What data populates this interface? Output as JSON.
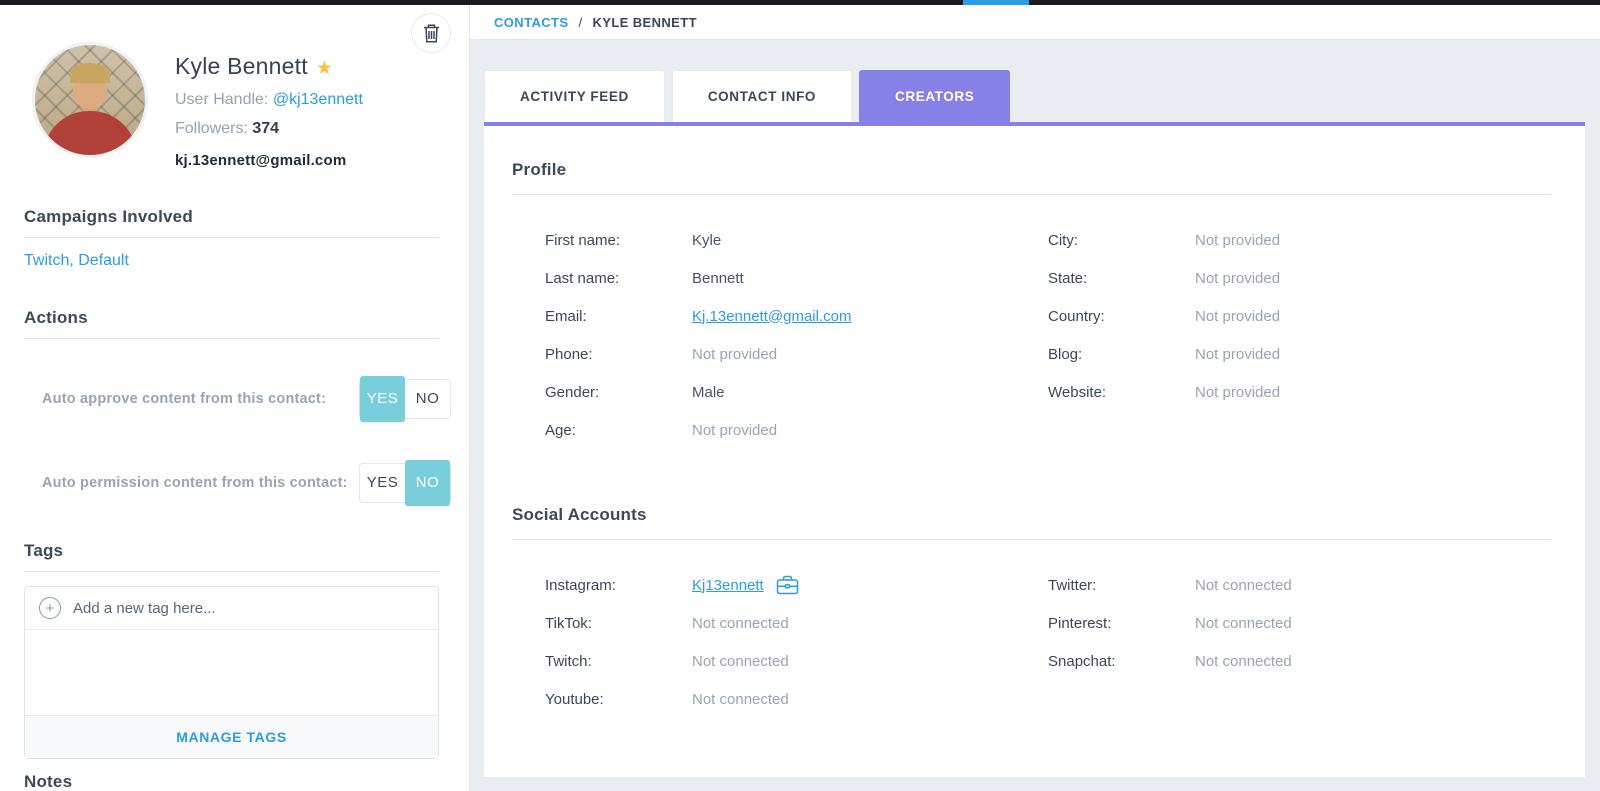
{
  "colors": {
    "accent_blue": "#2a9ce5",
    "accent_purple": "#8681e7",
    "accent_teal": "#79cedb",
    "star_gold": "#f6c544",
    "dark_text": "#3d4657",
    "muted_text": "#9aa3b1",
    "topbar_black": "#1a1b1f",
    "topbar_blue_segment": "#2e9be5"
  },
  "breadcrumb": {
    "root": "CONTACTS",
    "separator": "/",
    "current": "KYLE BENNETT"
  },
  "sidebar": {
    "delete_icon": "trash-icon",
    "profile_card": {
      "name": "Kyle Bennett",
      "star_icon": "star-icon",
      "star_glyph": "★",
      "user_handle_label": "User Handle:",
      "user_handle": "@kj13ennett",
      "followers_label": "Followers:",
      "followers_count": "374",
      "email": "kj.13ennett@gmail.com"
    },
    "campaigns": {
      "title": "Campaigns Involved",
      "items": [
        "Twitch",
        "Default"
      ],
      "separator": ", "
    },
    "actions": {
      "title": "Actions",
      "rows": [
        {
          "label": "Auto approve content from this contact:",
          "yes_label": "YES",
          "no_label": "NO",
          "selected": "yes"
        },
        {
          "label": "Auto permission content from this contact:",
          "yes_label": "YES",
          "no_label": "NO",
          "selected": "no"
        }
      ]
    },
    "tags": {
      "title": "Tags",
      "add_icon": "plus-icon",
      "plus_glyph": "+",
      "add_placeholder": "Add a new tag here...",
      "manage_button": "MANAGE TAGS"
    },
    "notes": {
      "title": "Notes"
    }
  },
  "main": {
    "tabs": [
      {
        "label": "ACTIVITY FEED",
        "active": false
      },
      {
        "label": "CONTACT INFO",
        "active": false
      },
      {
        "label": "CREATORS",
        "active": true
      }
    ],
    "profile_section": {
      "title": "Profile",
      "left": [
        {
          "label": "First name:",
          "value": "Kyle",
          "type": "text"
        },
        {
          "label": "Last name:",
          "value": "Bennett",
          "type": "text"
        },
        {
          "label": "Email:",
          "value": "Kj.13ennett@gmail.com",
          "type": "link"
        },
        {
          "label": "Phone:",
          "value": "Not provided",
          "type": "muted"
        },
        {
          "label": "Gender:",
          "value": "Male",
          "type": "text"
        },
        {
          "label": "Age:",
          "value": "Not provided",
          "type": "muted"
        }
      ],
      "right": [
        {
          "label": "City:",
          "value": "Not provided",
          "type": "muted"
        },
        {
          "label": "State:",
          "value": "Not provided",
          "type": "muted"
        },
        {
          "label": "Country:",
          "value": "Not provided",
          "type": "muted"
        },
        {
          "label": "Blog:",
          "value": "Not provided",
          "type": "muted"
        },
        {
          "label": "Website:",
          "value": "Not provided",
          "type": "muted"
        }
      ]
    },
    "social_section": {
      "title": "Social Accounts",
      "left": [
        {
          "label": "Instagram:",
          "value": "Kj13ennett",
          "type": "link",
          "icon": "briefcase-icon"
        },
        {
          "label": "TikTok:",
          "value": "Not connected",
          "type": "muted"
        },
        {
          "label": "Twitch:",
          "value": "Not connected",
          "type": "muted"
        },
        {
          "label": "Youtube:",
          "value": "Not connected",
          "type": "muted"
        }
      ],
      "right": [
        {
          "label": "Twitter:",
          "value": "Not connected",
          "type": "muted"
        },
        {
          "label": "Pinterest:",
          "value": "Not connected",
          "type": "muted"
        },
        {
          "label": "Snapchat:",
          "value": "Not connected",
          "type": "muted"
        }
      ]
    }
  }
}
